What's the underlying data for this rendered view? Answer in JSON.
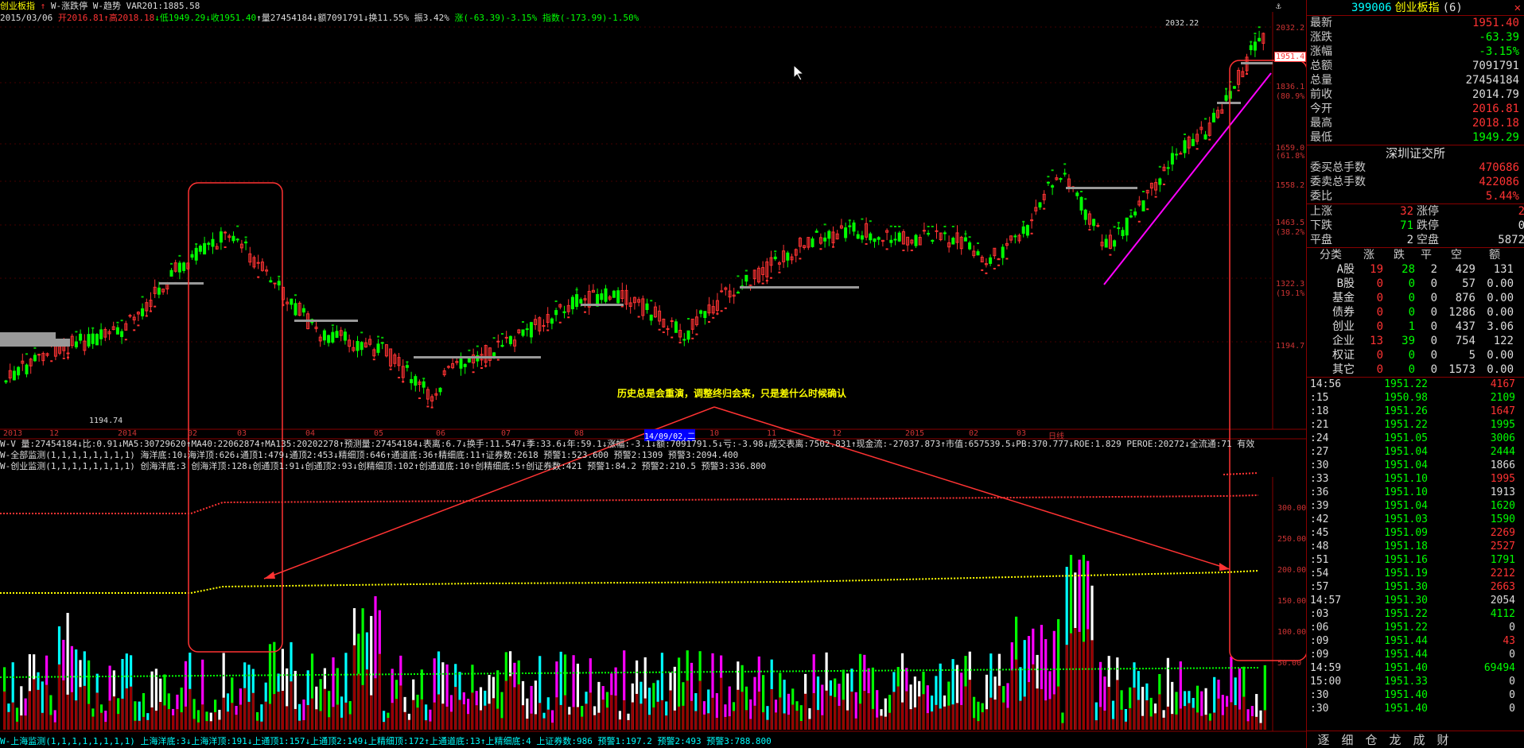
{
  "header": {
    "title": "创业板指",
    "indicator1": "W-涨跌停",
    "indicator2": "W-趋势",
    "var": "VAR201:1885.58",
    "date": "2015/03/06",
    "open": "开2016.81",
    "high": "高2018.18",
    "low": "低1949.29",
    "close": "收1951.40",
    "vol": "量27454184",
    "amt": "额7091791",
    "turnover": "换11.55%",
    "amplitude": "振3.42%",
    "change": "涨(-63.39)-3.15%",
    "index": "指数(-173.99)-1.50%"
  },
  "price_axis": [
    "2032.2",
    "1951.4",
    "1836.1",
    "(80.9%)",
    "1659.0",
    "(61.8%)",
    "1558.2",
    "1463.5",
    "(38.2%)",
    "1322.3",
    "(19.1%)",
    "1194.7"
  ],
  "price_marks": {
    "high": "2032.22",
    "low": "1194.74"
  },
  "x_axis": [
    "2013",
    "12",
    "2014",
    "02",
    "03",
    "04",
    "05",
    "06",
    "07",
    "08",
    "14/09/02,二",
    "10",
    "11",
    "12",
    "2015",
    "02",
    "03",
    "日线"
  ],
  "annotation": "历史总是会重演，调整终归会来，只是差什么时候确认",
  "info_line1": "W-V 量:27454184↓比:0.91↓MA5:30729620↑MA40:22062874↑MA135:20202278↑预测量:27454184↓表离:6.7↓换手:11.547↓季:33.6↓年:59.1↓涨幅:-3.1↓额:7091791.5↓亏:-3.98↓成交表离:7502.831↑现金流:-27037.873↑市值:657539.5↓PB:370.777↓ROE:1.829 PEROE:20272↓全流通:71 有效",
  "info_line2": "W-全部监测(1,1,1,1,1,1,1,1) 海洋底:10↓海洋顶:626↓通顶1:479↓通顶2:453↓精细顶:646↑通道底:36↑精细底:11↑证券数:2618 预警1:523.600 预警2:1309 预警3:2094.400",
  "info_line3": "W-创业监测(1,1,1,1,1,1,1,1) 创海洋底:3 创海洋顶:128↓创通顶1:91↓创通顶2:93↓创精细顶:102↑创通道底:10↑创精细底:5↑创证券数:421 预警1:84.2 预警2:210.5 预警3:336.800",
  "footer": "W-上海监测(1,1,1,1,1,1,1,1) 上海洋底:3↓上海洋顶:191↓上通顶1:157↓上通顶2:149↓上精细顶:172↑上通道底:13↑上精细底:4 上证券数:986 预警1:197.2 预警2:493 预警3:788.800",
  "vol_axis": [
    "300.00",
    "250.00",
    "200.00",
    "150.00",
    "100.00",
    "50.00"
  ],
  "side": {
    "code": "399006",
    "name": "创业板指",
    "suffix": "(6)",
    "quotes": [
      {
        "k": "最新",
        "v": "1951.40",
        "c": "#f33"
      },
      {
        "k": "涨跌",
        "v": "-63.39",
        "c": "#0f0"
      },
      {
        "k": "涨幅",
        "v": "-3.15%",
        "c": "#0f0"
      },
      {
        "k": "总额",
        "v": "7091791",
        "c": "#ddd"
      },
      {
        "k": "总量",
        "v": "27454184",
        "c": "#ddd"
      },
      {
        "k": "前收",
        "v": "2014.79",
        "c": "#ddd"
      },
      {
        "k": "今开",
        "v": "2016.81",
        "c": "#f33"
      },
      {
        "k": "最高",
        "v": "2018.18",
        "c": "#f33"
      },
      {
        "k": "最低",
        "v": "1949.29",
        "c": "#0f0"
      }
    ],
    "exchange": "深圳证交所",
    "orders": [
      {
        "k": "委买总手数",
        "v": "470686",
        "c": "#f33"
      },
      {
        "k": "委卖总手数",
        "v": "422086",
        "c": "#f33"
      },
      {
        "k": "委比",
        "v": "5.44%",
        "c": "#f33"
      }
    ],
    "breadth": [
      {
        "a": "上涨",
        "b": "32",
        "c": "涨停",
        "d": "2"
      },
      {
        "a": "下跌",
        "b": "71",
        "c": "跌停",
        "d": "0"
      },
      {
        "a": "平盘",
        "b": "2",
        "c": "空盘",
        "d": "5872"
      }
    ],
    "table_head": [
      "分类",
      "涨",
      "跌",
      "平",
      "空",
      "额"
    ],
    "table_rows": [
      [
        "A股",
        "19",
        "28",
        "2",
        "429",
        "131"
      ],
      [
        "B股",
        "0",
        "0",
        "0",
        "57",
        "0.00"
      ],
      [
        "基金",
        "0",
        "0",
        "0",
        "876",
        "0.00"
      ],
      [
        "债券",
        "0",
        "0",
        "0",
        "1286",
        "0.00"
      ],
      [
        "创业",
        "0",
        "1",
        "0",
        "437",
        "3.06"
      ],
      [
        "企业",
        "13",
        "39",
        "0",
        "754",
        "122"
      ],
      [
        "权证",
        "0",
        "0",
        "0",
        "5",
        "0.00"
      ],
      [
        "其它",
        "0",
        "0",
        "0",
        "1573",
        "0.00"
      ]
    ],
    "ticks": [
      [
        "14:56",
        "1951.22",
        "4167",
        "r"
      ],
      [
        ":15",
        "1950.98",
        "2109",
        "g"
      ],
      [
        ":18",
        "1951.26",
        "1647",
        "r"
      ],
      [
        ":21",
        "1951.22",
        "1995",
        "g"
      ],
      [
        ":24",
        "1951.05",
        "3006",
        "g"
      ],
      [
        ":27",
        "1951.04",
        "2444",
        "g"
      ],
      [
        ":30",
        "1951.04",
        "1866",
        "w"
      ],
      [
        ":33",
        "1951.10",
        "1995",
        "r"
      ],
      [
        ":36",
        "1951.10",
        "1913",
        "w"
      ],
      [
        ":39",
        "1951.04",
        "1620",
        "g"
      ],
      [
        ":42",
        "1951.03",
        "1590",
        "g"
      ],
      [
        ":45",
        "1951.09",
        "2269",
        "r"
      ],
      [
        ":48",
        "1951.18",
        "2527",
        "r"
      ],
      [
        ":51",
        "1951.16",
        "1791",
        "g"
      ],
      [
        ":54",
        "1951.19",
        "2212",
        "r"
      ],
      [
        ":57",
        "1951.30",
        "2663",
        "r"
      ],
      [
        "14:57",
        "1951.30",
        "2054",
        "w"
      ],
      [
        ":03",
        "1951.22",
        "4112",
        "g"
      ],
      [
        ":06",
        "1951.22",
        "0",
        "w"
      ],
      [
        ":09",
        "1951.44",
        "43",
        "r"
      ],
      [
        ":09",
        "1951.44",
        "0",
        "w"
      ],
      [
        "14:59",
        "1951.40",
        "69494",
        "g"
      ],
      [
        "15:00",
        "1951.33",
        "0",
        "w"
      ],
      [
        ":30",
        "1951.40",
        "0",
        "w"
      ],
      [
        ":30",
        "1951.40",
        "0",
        "w"
      ]
    ],
    "tabs": [
      "逐",
      "细",
      "仓",
      "龙",
      "成",
      "财"
    ]
  },
  "colors": {
    "up": "#ff3333",
    "down": "#00ff00",
    "axis": "#cc3333",
    "bg": "#000000"
  }
}
